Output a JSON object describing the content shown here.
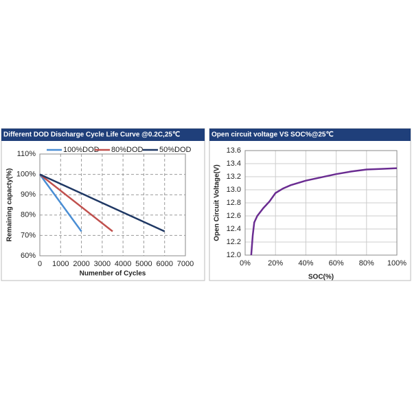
{
  "chart_data": [
    {
      "type": "line",
      "title": "Different DOD Discharge Cycle Life Curve @0.2C,25℃",
      "x_label": "Numenber of Cycles",
      "y_label": "Remaining capacty(%)",
      "xlim": [
        0,
        7000
      ],
      "xticks": [
        0,
        1000,
        2000,
        3000,
        4000,
        5000,
        6000,
        7000
      ],
      "ylim": [
        60,
        110
      ],
      "yticks": [
        {
          "value": 60,
          "label": "60%"
        },
        {
          "value": 70,
          "label": "70%"
        },
        {
          "value": 80,
          "label": "80%"
        },
        {
          "value": 90,
          "label": "90%"
        },
        {
          "value": 100,
          "label": "100%"
        },
        {
          "value": 110,
          "label": "110%"
        }
      ],
      "grid": "dashed",
      "legend": "top",
      "series": [
        {
          "name": "100%DOD",
          "color": "#4a8ed4",
          "x": [
            0,
            2000
          ],
          "values": [
            100,
            72
          ]
        },
        {
          "name": "80%DOD",
          "color": "#c0504d",
          "x": [
            0,
            3500
          ],
          "values": [
            100,
            72
          ]
        },
        {
          "name": "50%DOD",
          "color": "#1f3864",
          "x": [
            0,
            6000
          ],
          "values": [
            100,
            72
          ]
        }
      ]
    },
    {
      "type": "line",
      "title": "Open circuit voltage VS SOC%@25℃",
      "x_label": "SOC(%)",
      "y_label": "Open Circuit Voltage(V)",
      "xlim": [
        0,
        100
      ],
      "xticks": [
        {
          "value": 0,
          "label": "0%"
        },
        {
          "value": 20,
          "label": "20%"
        },
        {
          "value": 40,
          "label": "40%"
        },
        {
          "value": 60,
          "label": "60%"
        },
        {
          "value": 80,
          "label": "80%"
        },
        {
          "value": 100,
          "label": "100%"
        }
      ],
      "ylim": [
        12,
        13.6
      ],
      "yticks": [
        {
          "value": 12,
          "label": "12.0"
        },
        12.2,
        12.4,
        12.6,
        12.8,
        {
          "value": 13,
          "label": "13.0"
        },
        13.2,
        13.4,
        13.6
      ],
      "grid": "solid",
      "series": [
        {
          "color": "#6a2c91",
          "x": [
            4,
            5,
            6,
            8,
            12,
            16,
            20,
            25,
            30,
            40,
            50,
            60,
            70,
            80,
            90,
            100
          ],
          "values": [
            12.0,
            12.3,
            12.5,
            12.6,
            12.72,
            12.82,
            12.95,
            13.02,
            13.07,
            13.14,
            13.19,
            13.24,
            13.28,
            13.31,
            13.32,
            13.33
          ]
        }
      ]
    }
  ]
}
